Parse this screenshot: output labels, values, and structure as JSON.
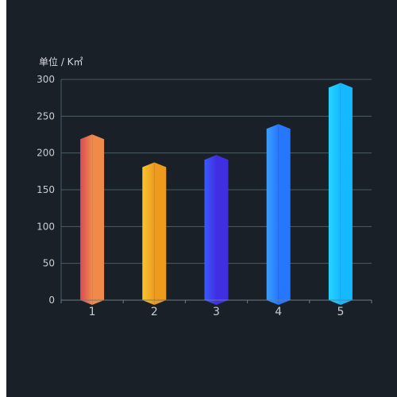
{
  "chart_data": {
    "type": "bar",
    "unit_label": "单位 / K㎡",
    "categories": [
      "1",
      "2",
      "3",
      "4",
      "5"
    ],
    "values": [
      222,
      184,
      194,
      236,
      292
    ],
    "ylim": [
      0,
      300
    ],
    "yticks": [
      0,
      50,
      100,
      150,
      200,
      250,
      300
    ],
    "grid": true,
    "colors": [
      [
        "#d84a5a",
        "#f08a4a"
      ],
      [
        "#f9c531",
        "#ee9a1d"
      ],
      [
        "#3b5bff",
        "#3f2fe0"
      ],
      [
        "#3aa0ff",
        "#2677ff"
      ],
      [
        "#28d4ff",
        "#14b9ff"
      ]
    ]
  }
}
